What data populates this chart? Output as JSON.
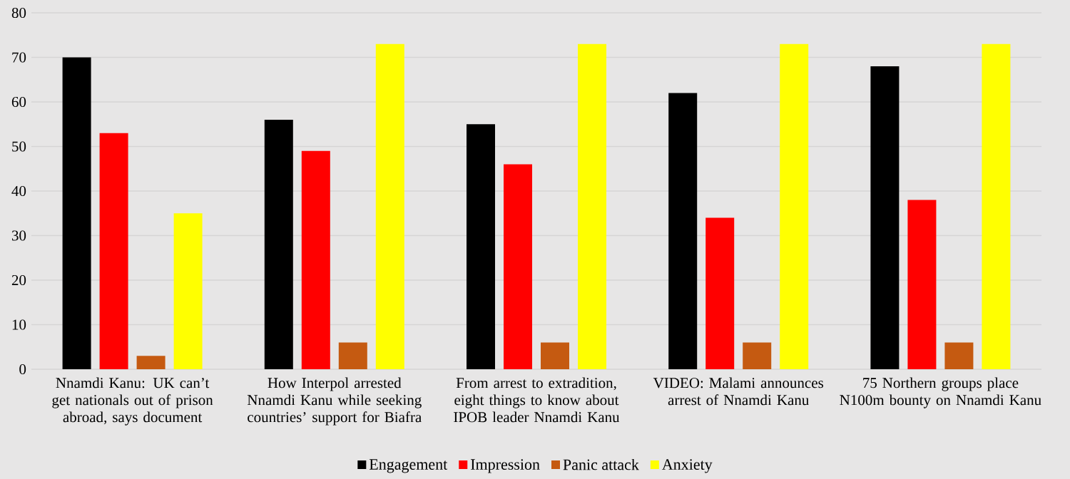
{
  "chart_data": {
    "type": "bar",
    "categories": [
      "Nnamdi Kanu: UK can’t get nationals out of prison abroad, says document",
      "How Interpol arrested Nnamdi Kanu while seeking countries’ support for Biafra",
      "From arrest to extradition, eight things to know about IPOB leader Nnamdi Kanu",
      "VIDEO: Malami announces arrest of Nnamdi Kanu",
      "75 Northern groups place N100m bounty on Nnamdi Kanu"
    ],
    "series": [
      {
        "name": "Engagement",
        "color": "#000000",
        "values": [
          70,
          56,
          55,
          62,
          68
        ]
      },
      {
        "name": "Impression",
        "color": "#ff0000",
        "values": [
          53,
          49,
          46,
          34,
          38
        ]
      },
      {
        "name": "Panic attack",
        "color": "#c55a11",
        "values": [
          3,
          6,
          6,
          6,
          6
        ]
      },
      {
        "name": "Anxiety",
        "color": "#ffff00",
        "values": [
          35,
          73,
          73,
          73,
          73
        ]
      }
    ],
    "ylim": [
      0,
      80
    ],
    "yticks": [
      0,
      10,
      20,
      30,
      40,
      50,
      60,
      70,
      80
    ],
    "grid": "y",
    "legend": "bottom"
  }
}
